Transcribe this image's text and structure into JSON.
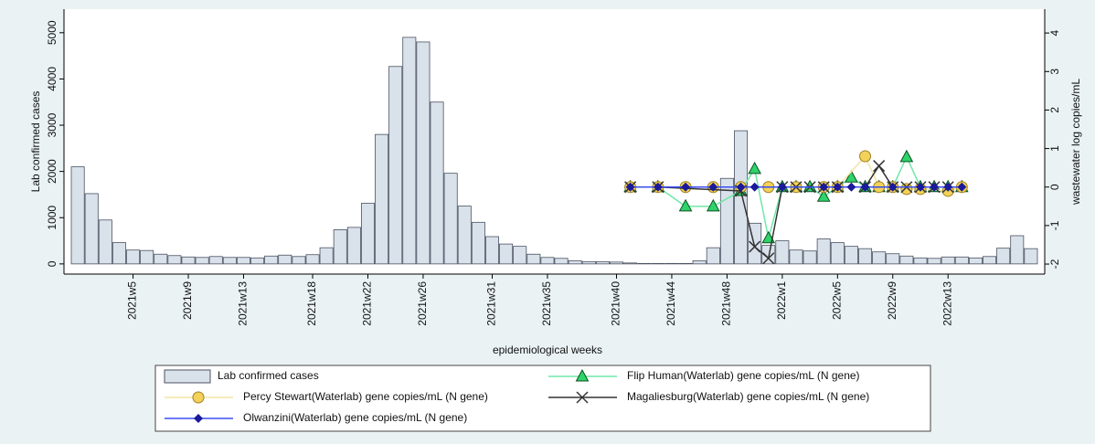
{
  "chart_data": {
    "type": "combo",
    "x_label": "epidemiological weeks",
    "y_label": "Lab confirmed cases",
    "y2_label": "wastewater log copies/mL",
    "xlim": [
      0,
      71
    ],
    "xticks": [
      {
        "value": 5,
        "label": "2021w5"
      },
      {
        "value": 9,
        "label": "2021w9"
      },
      {
        "value": 13,
        "label": "2021w13"
      },
      {
        "value": 18,
        "label": "2021w18"
      },
      {
        "value": 22,
        "label": "2021w22"
      },
      {
        "value": 26,
        "label": "2021w26"
      },
      {
        "value": 31,
        "label": "2021w31"
      },
      {
        "value": 35,
        "label": "2021w35"
      },
      {
        "value": 40,
        "label": "2021w40"
      },
      {
        "value": 44,
        "label": "2021w44"
      },
      {
        "value": 48,
        "label": "2021w48"
      },
      {
        "value": 52,
        "label": "2022w1"
      },
      {
        "value": 56,
        "label": "2022w5"
      },
      {
        "value": 60,
        "label": "2022w9"
      },
      {
        "value": 64,
        "label": "2022w13"
      }
    ],
    "ylim": [
      -220,
      5510
    ],
    "yticks": [
      0,
      1000,
      2000,
      3000,
      4000,
      5000
    ],
    "y2lim": [
      -2.26,
      4.62
    ],
    "y2ticks": [
      -2,
      -1,
      0,
      1,
      2,
      3,
      4
    ],
    "series": [
      {
        "name": "Lab confirmed cases",
        "type": "bar",
        "color": "#d9e1ea",
        "edge_color": "#4a5262",
        "x": [
          1,
          2,
          3,
          4,
          5,
          6,
          7,
          8,
          9,
          10,
          11,
          12,
          13,
          14,
          15,
          16,
          17,
          18,
          19,
          20,
          21,
          22,
          23,
          24,
          25,
          26,
          27,
          28,
          29,
          30,
          31,
          32,
          33,
          34,
          35,
          36,
          37,
          38,
          39,
          40,
          41,
          42,
          43,
          44,
          45,
          46,
          47,
          48,
          49,
          50,
          51,
          52,
          53,
          54,
          55,
          56,
          57,
          58,
          59,
          60,
          61,
          62,
          63,
          64,
          65,
          66,
          67,
          68,
          69,
          70
        ],
        "values": [
          2100,
          1520,
          950,
          460,
          300,
          290,
          210,
          180,
          150,
          140,
          160,
          140,
          140,
          130,
          170,
          190,
          160,
          200,
          350,
          740,
          790,
          1310,
          2800,
          4270,
          4900,
          4800,
          3500,
          1960,
          1250,
          900,
          590,
          430,
          380,
          210,
          140,
          120,
          70,
          50,
          50,
          40,
          20,
          10,
          10,
          10,
          10,
          70,
          350,
          1850,
          2880,
          880,
          400,
          500,
          300,
          280,
          540,
          460,
          380,
          330,
          260,
          220,
          170,
          130,
          120,
          150,
          150,
          130,
          160,
          340,
          610,
          330
        ]
      },
      {
        "name": "Flip Human(Waterlab) gene copies/mL (N gene)",
        "type": "line",
        "axis": "y2",
        "color": "#6fe8a8",
        "marker": "triangle",
        "marker_color": "#2ed36a",
        "x": [
          41,
          43,
          45,
          47,
          49,
          50,
          51,
          52,
          53,
          54,
          55,
          56,
          57,
          58,
          59,
          60,
          61,
          62,
          63,
          64,
          65
        ],
        "values": [
          0,
          0,
          -0.5,
          -0.5,
          -0.1,
          0.47,
          -1.33,
          0,
          0,
          0,
          -0.25,
          0,
          0.25,
          0,
          0,
          0,
          0.78,
          0,
          0,
          0,
          0
        ]
      },
      {
        "name": "Percy Stewart(Waterlab) gene copies/mL (N gene)",
        "type": "line",
        "axis": "y2",
        "color": "#f3e6a4",
        "marker": "circle",
        "marker_color": "#f4d25a",
        "x": [
          41,
          43,
          45,
          47,
          49,
          51,
          53,
          55,
          56,
          58,
          59,
          60,
          61,
          62,
          64,
          65
        ],
        "values": [
          0,
          0,
          0,
          0,
          0,
          0,
          0,
          0,
          0,
          0.8,
          0,
          0,
          -0.05,
          -0.05,
          -0.1,
          0
        ]
      },
      {
        "name": "Magaliesburg(Waterlab) gene copies/mL (N gene)",
        "type": "line",
        "axis": "y2",
        "color": "#333333",
        "marker": "x",
        "marker_color": "#333333",
        "x": [
          41,
          43,
          49,
          50,
          51,
          52,
          53,
          54,
          55,
          56,
          58,
          59,
          60,
          61,
          62,
          63,
          64
        ],
        "values": [
          0,
          0,
          -0.1,
          -1.55,
          -1.85,
          0,
          0,
          0,
          0,
          0,
          0,
          0.55,
          0,
          0,
          0,
          0,
          0
        ]
      },
      {
        "name": "Olwanzini(Waterlab) gene copies/mL (N gene)",
        "type": "line",
        "axis": "y2",
        "color": "#3a4df0",
        "marker": "diamond",
        "marker_color": "#1a1a9a",
        "x": [
          41,
          43,
          45,
          47,
          49,
          50,
          52,
          55,
          56,
          57,
          58,
          60,
          62,
          63,
          64,
          65
        ],
        "values": [
          0,
          0,
          0,
          0,
          0,
          0,
          0,
          0,
          0,
          0,
          0,
          0,
          0,
          0,
          0,
          0
        ]
      }
    ]
  }
}
